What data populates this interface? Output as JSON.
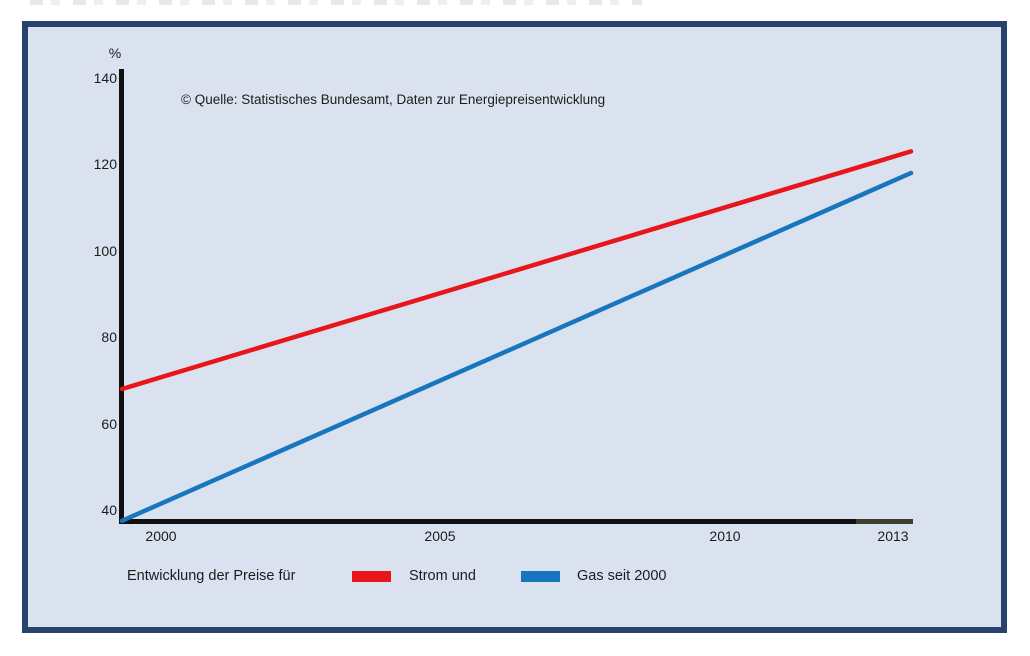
{
  "frame": {
    "border_color": "#27426b",
    "background": "#dae2f0"
  },
  "source_note": "© Quelle: Statistisches Bundesamt, Daten zur Energiepreisentwicklung",
  "chart_data": {
    "type": "line",
    "title": "",
    "xlabel": "",
    "ylabel": "%",
    "x": [
      2000,
      2013
    ],
    "series": [
      {
        "name": "Strom",
        "color": "#e8151a",
        "values": [
          68,
          123
        ]
      },
      {
        "name": "Gas",
        "color": "#1776bd",
        "values": [
          37.5,
          118
        ]
      }
    ],
    "xtick_labels": [
      "2000",
      "2005",
      "2010",
      "2013"
    ],
    "ytick_labels": [
      "140",
      "120",
      "100",
      "80",
      "60",
      "40"
    ],
    "xlim": [
      2000,
      2013
    ],
    "ylim": [
      37,
      143
    ],
    "grid": false,
    "legend_position": "bottom"
  },
  "legend": {
    "prefix": "Entwicklung der Preise für",
    "strom_label": "Strom und",
    "gas_label": "Gas seit 2000"
  }
}
